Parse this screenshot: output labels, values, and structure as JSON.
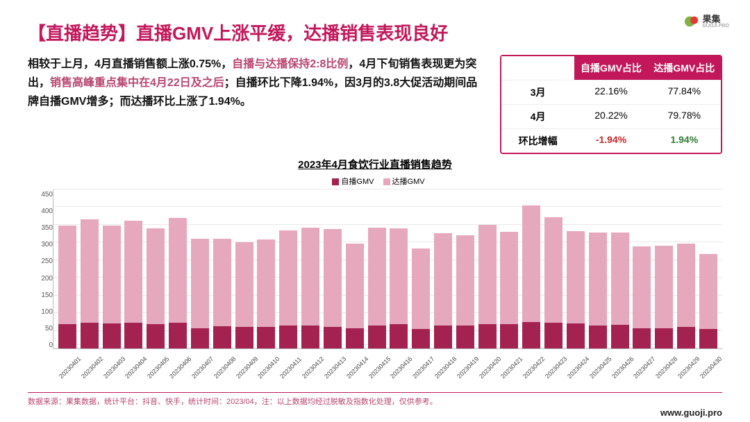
{
  "brand": {
    "name": "果集",
    "sub": "GUOJI.PRO",
    "logo_color_a": "#7cb342",
    "logo_color_b": "#e53935"
  },
  "title": "【直播趋势】直播GMV上涨平缓，达播销售表现良好",
  "desc": {
    "p1a": "相较于上月，4月直播销售额上涨0.75%，",
    "p1b": "自播与达播保持2:8比例",
    "p1c": "，4月下旬销售表现更为突出，",
    "p1d": "销售高峰重点集中在4月22日及之后",
    "p1e": "；自播环比下降1.94%，因3月的3.8大促活动期间品牌自播GMV增多；而达播环比上涨了1.94%。"
  },
  "table": {
    "headers": [
      "",
      "自播GMV占比",
      "达播GMV占比"
    ],
    "rows": [
      {
        "label": "3月",
        "a": "22.16%",
        "b": "77.84%"
      },
      {
        "label": "4月",
        "a": "20.22%",
        "b": "79.78%"
      }
    ],
    "delta": {
      "label": "环比增幅",
      "a": "-1.94%",
      "b": "1.94%"
    },
    "border_color": "#c2185b",
    "header_bg": "#c2185b",
    "header_fg": "#ffffff",
    "neg_color": "#c62828",
    "pos_color": "#2e7d32"
  },
  "chart": {
    "title": "2023年4月食饮行业直播销售趋势",
    "legend": [
      {
        "label": "自播GMV",
        "color": "#a3224f"
      },
      {
        "label": "达播GMV",
        "color": "#e6a8bd"
      }
    ],
    "type": "stacked-bar",
    "ylim": [
      0,
      450
    ],
    "ytick_step": 50,
    "grid_color": "#e8e8e8",
    "axis_color": "#bbbbbb",
    "background_color": "#ffffff",
    "bar_colors": {
      "self": "#a3224f",
      "dabo": "#e6a8bd"
    },
    "label_fontsize": 9,
    "categories": [
      "20230401",
      "20230402",
      "20230403",
      "20230404",
      "20230405",
      "20230406",
      "20230407",
      "20230408",
      "20230409",
      "20230410",
      "20230411",
      "20230412",
      "20230413",
      "20230414",
      "20230415",
      "20230416",
      "20230417",
      "20230418",
      "20230419",
      "20230420",
      "20230421",
      "20230422",
      "20230423",
      "20230424",
      "20230425",
      "20230426",
      "20230427",
      "20230428",
      "20230429",
      "20230430"
    ],
    "series": {
      "self": [
        68,
        72,
        70,
        72,
        68,
        72,
        58,
        62,
        60,
        60,
        65,
        64,
        60,
        58,
        64,
        68,
        56,
        64,
        64,
        68,
        68,
        75,
        72,
        70,
        64,
        66,
        58,
        58,
        60,
        56
      ],
      "dabo": [
        280,
        293,
        278,
        290,
        272,
        298,
        252,
        248,
        240,
        248,
        270,
        278,
        278,
        238,
        278,
        272,
        228,
        262,
        256,
        282,
        263,
        330,
        300,
        263,
        264,
        262,
        230,
        232,
        236,
        212
      ]
    }
  },
  "footer": "数据来源：果集数据，统计平台：抖音、快手，统计时间：2023/04，注：以上数据均经过脱敏及指数化处理，仅供参考。",
  "url": "www.guoji.pro",
  "colors": {
    "title": "#c2185b",
    "text": "#111111",
    "highlight": "#b8456e"
  }
}
